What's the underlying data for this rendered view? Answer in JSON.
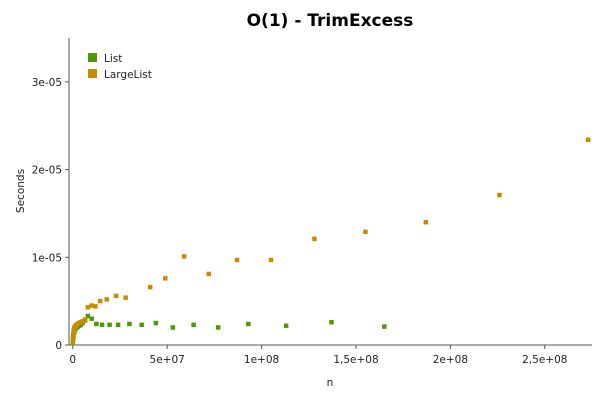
{
  "chart_data": {
    "type": "scatter",
    "title": "O(1) - TrimExcess",
    "xlabel": "n",
    "ylabel": "Seconds",
    "xlim": [
      -2000000,
      275000000
    ],
    "ylim": [
      0,
      3.5e-05
    ],
    "x_ticks": [
      0,
      50000000,
      100000000,
      150000000,
      200000000,
      250000000
    ],
    "x_tick_labels": [
      "0",
      "5e+07",
      "1e+08",
      "1,5e+08",
      "2e+08",
      "2,5e+08"
    ],
    "y_ticks": [
      0,
      1e-05,
      2e-05,
      3e-05
    ],
    "y_tick_labels": [
      "0",
      "1e-05",
      "2e-05",
      "3e-05"
    ],
    "grid": false,
    "legend_position": "top-left",
    "series": [
      {
        "name": "List",
        "color": "#4e9a06",
        "points": [
          [
            0,
            2e-07
          ],
          [
            100000,
            5e-07
          ],
          [
            200000,
            8e-07
          ],
          [
            400000,
            1.1e-06
          ],
          [
            600000,
            1.4e-06
          ],
          [
            900000,
            1.6e-06
          ],
          [
            1200000,
            1.8e-06
          ],
          [
            1600000,
            1.9e-06
          ],
          [
            2000000,
            2e-06
          ],
          [
            2600000,
            2.1e-06
          ],
          [
            3300000,
            2.2e-06
          ],
          [
            4200000,
            2.3e-06
          ],
          [
            5200000,
            2.5e-06
          ],
          [
            6500000,
            2.8e-06
          ],
          [
            8000000,
            3.3e-06
          ],
          [
            10000000,
            3e-06
          ],
          [
            12500000,
            2.4e-06
          ],
          [
            15500000,
            2.3e-06
          ],
          [
            19500000,
            2.3e-06
          ],
          [
            24000000,
            2.3e-06
          ],
          [
            30000000,
            2.4e-06
          ],
          [
            36500000,
            2.3e-06
          ],
          [
            44000000,
            2.5e-06
          ],
          [
            53000000,
            2e-06
          ],
          [
            64000000,
            2.3e-06
          ],
          [
            77000000,
            2e-06
          ],
          [
            93000000,
            2.4e-06
          ],
          [
            113000000,
            2.2e-06
          ],
          [
            137000000,
            2.6e-06
          ],
          [
            165000000,
            2.1e-06
          ]
        ]
      },
      {
        "name": "LargeList",
        "color": "#c98c00",
        "points": [
          [
            0,
            3e-07
          ],
          [
            100000,
            7e-07
          ],
          [
            200000,
            1.1e-06
          ],
          [
            400000,
            1.5e-06
          ],
          [
            600000,
            1.8e-06
          ],
          [
            900000,
            2e-06
          ],
          [
            1200000,
            2.1e-06
          ],
          [
            1600000,
            2.2e-06
          ],
          [
            2000000,
            2.3e-06
          ],
          [
            2600000,
            2.4e-06
          ],
          [
            3300000,
            2.5e-06
          ],
          [
            4200000,
            2.6e-06
          ],
          [
            5200000,
            2.7e-06
          ],
          [
            6500000,
            2.9e-06
          ],
          [
            8000000,
            4.3e-06
          ],
          [
            10000000,
            4.5e-06
          ],
          [
            12000000,
            4.4e-06
          ],
          [
            14500000,
            5e-06
          ],
          [
            18000000,
            5.2e-06
          ],
          [
            23000000,
            5.6e-06
          ],
          [
            28000000,
            5.4e-06
          ],
          [
            41000000,
            6.6e-06
          ],
          [
            49000000,
            7.6e-06
          ],
          [
            59000000,
            1.01e-05
          ],
          [
            72000000,
            8.1e-06
          ],
          [
            87000000,
            9.7e-06
          ],
          [
            105000000,
            9.7e-06
          ],
          [
            128000000,
            1.21e-05
          ],
          [
            155000000,
            1.29e-05
          ],
          [
            187000000,
            1.4e-05
          ],
          [
            226000000,
            1.71e-05
          ],
          [
            273000000,
            2.34e-05
          ]
        ]
      }
    ]
  }
}
